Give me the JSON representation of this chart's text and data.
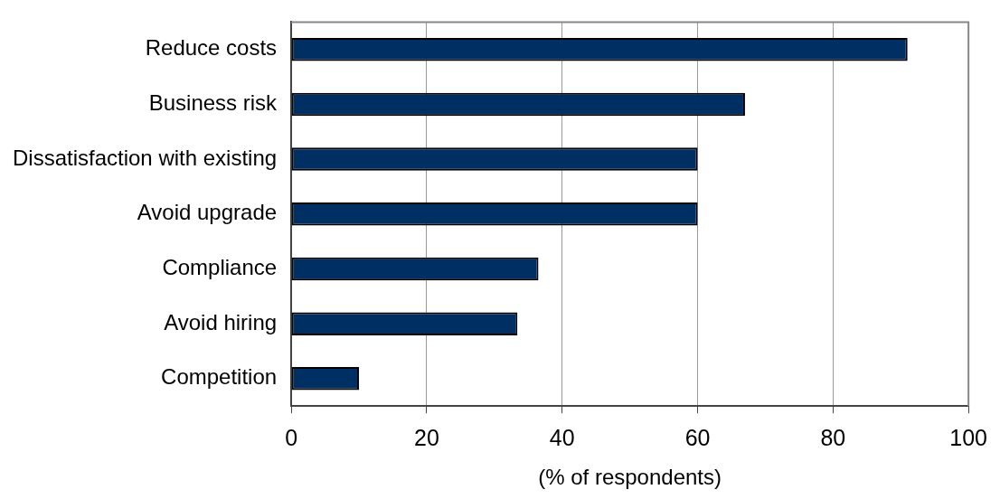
{
  "chart_data": {
    "type": "bar",
    "orientation": "horizontal",
    "xlabel": "(% of respondents)",
    "categories": [
      "Reduce costs",
      "Business risk",
      "Dissatisfaction with existing",
      "Avoid upgrade",
      "Compliance",
      "Avoid hiring",
      "Competition"
    ],
    "values": [
      91,
      67,
      60,
      60,
      36.5,
      33.4,
      10
    ],
    "color": "#003063",
    "xlim": [
      0,
      100
    ],
    "xticks": [
      0,
      20,
      40,
      60,
      80,
      100
    ],
    "grid": "x",
    "legend": false
  }
}
